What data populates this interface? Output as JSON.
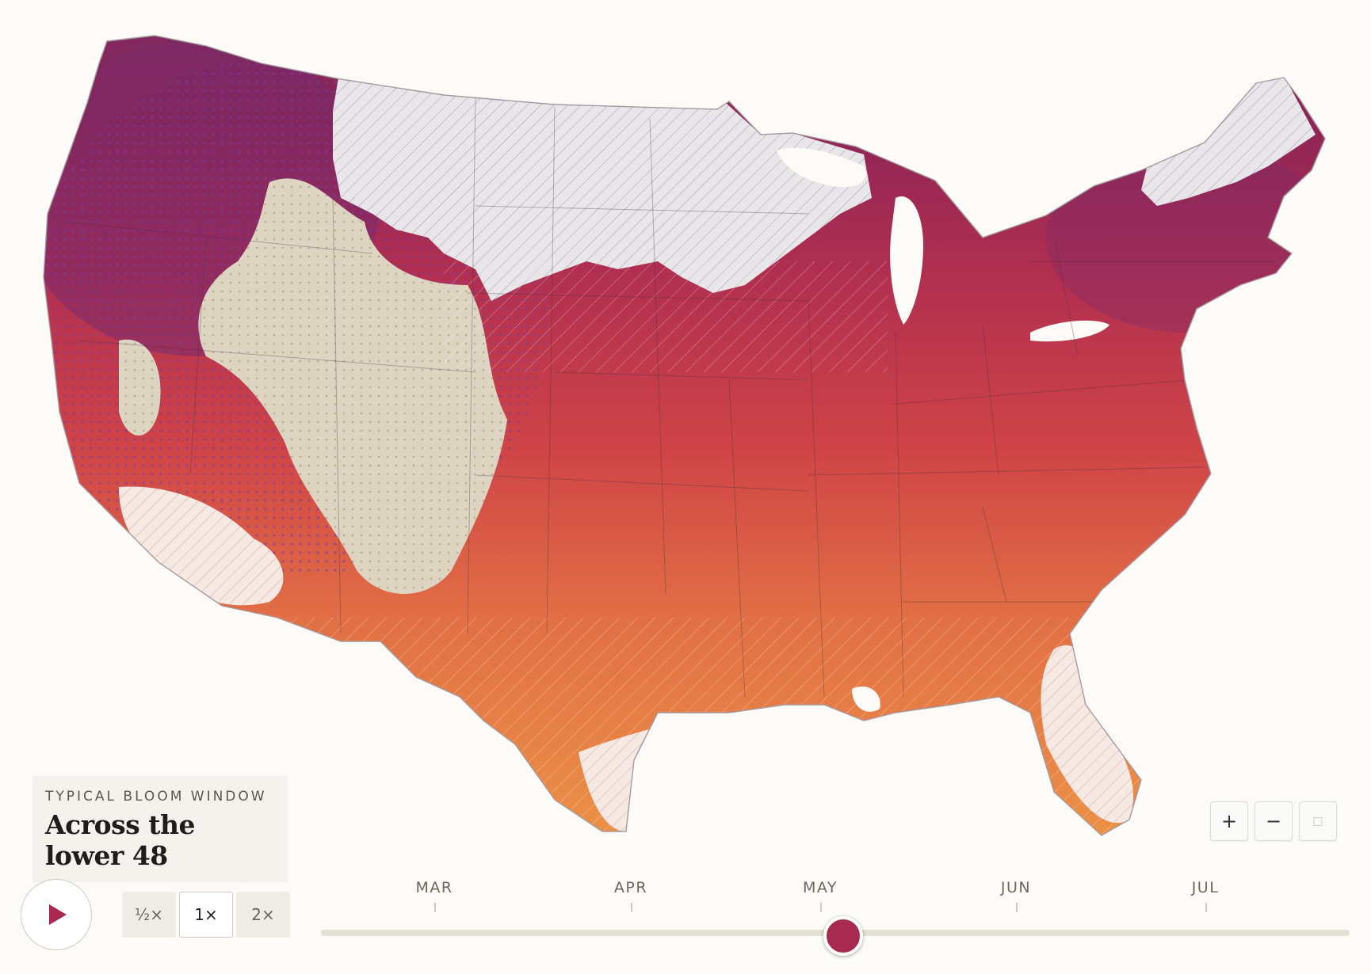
{
  "map": {
    "region": "Contiguous United States",
    "legend_colors": {
      "early": "#e68a45",
      "mid": "#c93a4c",
      "late": "#8f2455",
      "latest": "#6b2b78",
      "not_in_bloom": "#e9e6ea",
      "no_data": "#dcd4c0",
      "hatch": "#9e98a8"
    }
  },
  "label": {
    "eyebrow": "TYPICAL BLOOM WINDOW",
    "title": "Across the lower 48"
  },
  "zoom": {
    "in": "+",
    "out": "−",
    "reset": "□"
  },
  "playback": {
    "play_icon": "play-icon"
  },
  "speeds": [
    {
      "label": "½×",
      "active": false
    },
    {
      "label": "1×",
      "active": true
    },
    {
      "label": "2×",
      "active": false
    }
  ],
  "timeline": {
    "months": [
      "MAR",
      "APR",
      "MAY",
      "JUN",
      "JUL"
    ],
    "current_fraction": 0.508,
    "thumb_color": "#a82a50"
  }
}
